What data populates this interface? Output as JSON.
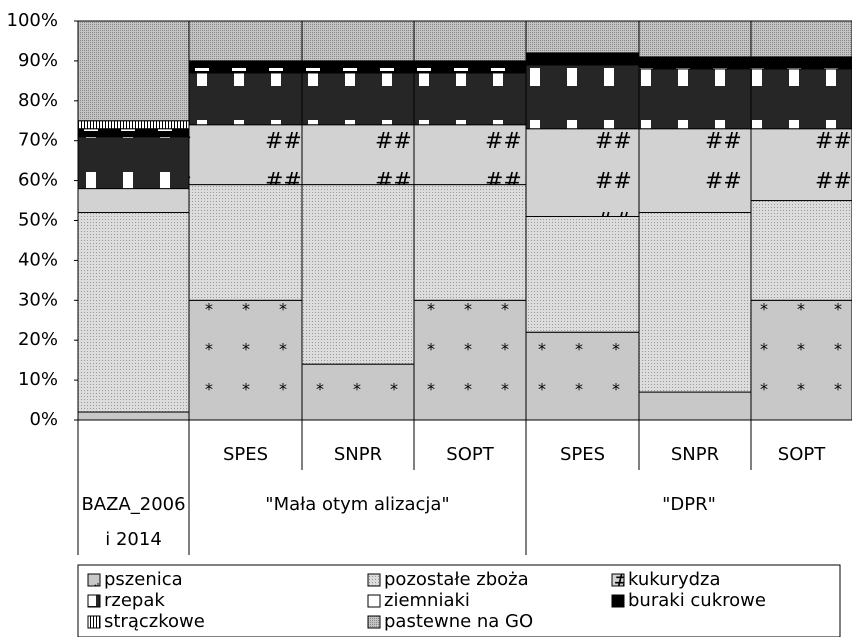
{
  "chart_data": {
    "type": "stacked_bar_100",
    "categories": [
      null,
      "SPES",
      "SNPR",
      "SOPT",
      "SPES",
      "SNPR",
      "SOPT"
    ],
    "groups": [
      {
        "label": [
          "BAZA_2006",
          "i 2014"
        ],
        "span": 1
      },
      {
        "label": [
          "\"Mała otym alizacja\""
        ],
        "span": 3
      },
      {
        "label": [
          "\"DPR\""
        ],
        "span": 3
      }
    ],
    "series": [
      {
        "name": "pszenica",
        "color": "#c8c8c8",
        "pattern": "stars",
        "values": [
          2,
          30,
          14,
          30,
          22,
          7,
          30
        ]
      },
      {
        "name": "pozostałe zboża",
        "color": "#dcdcdc",
        "pattern": "fine",
        "values": [
          50,
          29,
          45,
          29,
          29,
          45,
          25
        ]
      },
      {
        "name": "kukurydza",
        "color": "#d2d2d2",
        "pattern": "hash",
        "values": [
          6,
          15,
          15,
          15,
          22,
          21,
          18
        ]
      },
      {
        "name": "rzepak",
        "color": "#262626",
        "pattern": "blocks",
        "values": [
          13,
          13,
          13,
          13,
          16,
          15,
          15
        ]
      },
      {
        "name": "ziemniaki",
        "color": "#ffffff",
        "pattern": "plain",
        "values": [
          0,
          0,
          0,
          0,
          0,
          0,
          0
        ]
      },
      {
        "name": "buraki cukrowe",
        "color": "#000000",
        "pattern": "dash",
        "values": [
          2,
          3,
          3,
          3,
          3,
          3,
          3
        ]
      },
      {
        "name": "strączkowe",
        "color": "#ffffff",
        "pattern": "vlines",
        "values": [
          2,
          0,
          0,
          0,
          0,
          0,
          0
        ]
      },
      {
        "name": "pastewne na GO",
        "color": "#bdbdbd",
        "pattern": "dots",
        "values": [
          25,
          10,
          10,
          10,
          8,
          9,
          9
        ]
      }
    ],
    "ylim": [
      0,
      100
    ],
    "yticks": [
      {
        "value": 0,
        "label": "0%"
      },
      {
        "value": 10,
        "label": "10%"
      },
      {
        "value": 20,
        "label": "20%"
      },
      {
        "value": 30,
        "label": "30%"
      },
      {
        "value": 40,
        "label": "40%"
      },
      {
        "value": 50,
        "label": "50%"
      },
      {
        "value": 60,
        "label": "60%"
      },
      {
        "value": 70,
        "label": "70%"
      },
      {
        "value": 80,
        "label": "80%"
      },
      {
        "value": 90,
        "label": "90%"
      },
      {
        "value": 100,
        "label": "100%"
      }
    ]
  }
}
